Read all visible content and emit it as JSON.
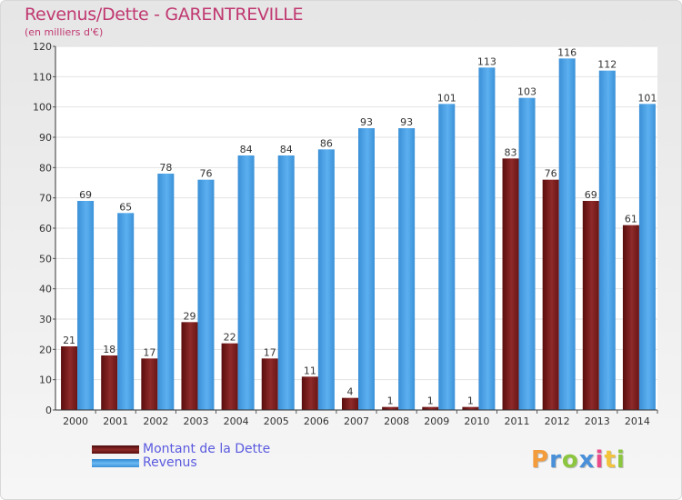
{
  "header": {
    "title": "Revenus/Dette - GARENTREVILLE",
    "subtitle": "(en milliers d'€)"
  },
  "legend": {
    "items": [
      {
        "label": "Montant de la Dette",
        "color": "#7a1d1d"
      },
      {
        "label": "Revenus",
        "color": "#4ca3e8"
      }
    ]
  },
  "logo": {
    "text": "Proxiti",
    "colors": [
      "#f39c3c",
      "#4a90d9",
      "#8cc63f",
      "#4a90d9",
      "#e94b8a",
      "#f3c33c",
      "#8cc63f"
    ]
  },
  "chart_data": {
    "type": "bar",
    "title": "Revenus/Dette - GARENTREVILLE",
    "subtitle": "(en milliers d'€)",
    "xlabel": "",
    "ylabel": "",
    "ylim": [
      0,
      120
    ],
    "yticks": [
      0,
      10,
      20,
      30,
      40,
      50,
      60,
      70,
      80,
      90,
      100,
      110,
      120
    ],
    "grid": true,
    "legend_position": "bottom-left",
    "categories": [
      "2000",
      "2001",
      "2002",
      "2003",
      "2004",
      "2005",
      "2006",
      "2007",
      "2008",
      "2009",
      "2010",
      "2011",
      "2012",
      "2013",
      "2014"
    ],
    "series": [
      {
        "name": "Montant de la Dette",
        "color": "#7a1d1d",
        "values": [
          21,
          18,
          17,
          29,
          22,
          17,
          11,
          4,
          1,
          1,
          1,
          83,
          76,
          69,
          61
        ]
      },
      {
        "name": "Revenus",
        "color": "#4ca3e8",
        "values": [
          69,
          65,
          78,
          76,
          84,
          84,
          86,
          93,
          93,
          101,
          113,
          103,
          116,
          112,
          101
        ]
      }
    ]
  }
}
